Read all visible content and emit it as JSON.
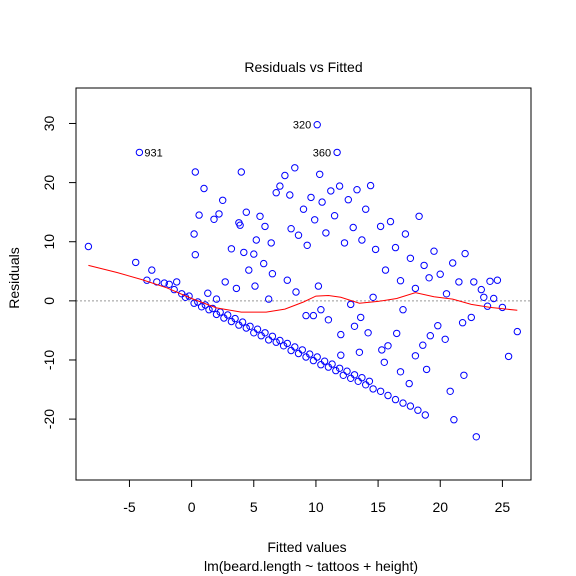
{
  "chart_data": {
    "type": "scatter",
    "title": "Residuals vs Fitted",
    "xlabel": "Fitted values",
    "subtitle": "lm(beard.length ~ tattoos + height)",
    "ylabel": "Residuals",
    "xlim": [
      -9.3,
      27.3
    ],
    "ylim": [
      -30.3,
      36.0
    ],
    "xticks": [
      -5,
      0,
      5,
      10,
      15,
      20,
      25
    ],
    "yticks": [
      -20,
      -10,
      0,
      10,
      20,
      30
    ],
    "grid": false,
    "reference_line_y": 0,
    "point_color": "#0000ff",
    "smooth_color": "#ff0000",
    "reference_color": "#999999",
    "labeled_points": [
      {
        "label": "320",
        "x": 10.1,
        "y": 29.8
      },
      {
        "label": "931",
        "x": -4.2,
        "y": 25.1
      },
      {
        "label": "360",
        "x": 11.7,
        "y": 25.1
      }
    ],
    "points": [
      [
        -8.3,
        9.2
      ],
      [
        -4.5,
        6.5
      ],
      [
        -3.2,
        5.2
      ],
      [
        -2.8,
        3.2
      ],
      [
        -3.6,
        3.5
      ],
      [
        -2.2,
        3.0
      ],
      [
        -1.8,
        2.8
      ],
      [
        -1.4,
        1.9
      ],
      [
        -1.2,
        3.2
      ],
      [
        -0.8,
        1.2
      ],
      [
        -0.5,
        0.6
      ],
      [
        0.3,
        21.8
      ],
      [
        1.0,
        19.0
      ],
      [
        1.8,
        13.8
      ],
      [
        0.6,
        14.5
      ],
      [
        0.2,
        11.3
      ],
      [
        0.3,
        7.8
      ],
      [
        -0.2,
        0.8
      ],
      [
        2.2,
        14.7
      ],
      [
        2.5,
        17.0
      ],
      [
        3.2,
        8.8
      ],
      [
        3.9,
        12.8
      ],
      [
        4.0,
        21.8
      ],
      [
        4.4,
        15.0
      ],
      [
        4.2,
        8.2
      ],
      [
        3.8,
        13.2
      ],
      [
        5.0,
        7.9
      ],
      [
        5.2,
        10.3
      ],
      [
        5.5,
        14.3
      ],
      [
        5.9,
        12.6
      ],
      [
        6.4,
        9.8
      ],
      [
        6.8,
        18.3
      ],
      [
        7.1,
        19.4
      ],
      [
        7.5,
        21.2
      ],
      [
        7.9,
        17.9
      ],
      [
        8.3,
        22.5
      ],
      [
        8.0,
        12.2
      ],
      [
        8.6,
        11.1
      ],
      [
        9.0,
        15.5
      ],
      [
        9.3,
        9.4
      ],
      [
        9.6,
        17.5
      ],
      [
        9.9,
        13.7
      ],
      [
        10.3,
        21.4
      ],
      [
        10.5,
        16.7
      ],
      [
        10.8,
        11.5
      ],
      [
        11.2,
        18.6
      ],
      [
        11.5,
        14.4
      ],
      [
        11.9,
        19.4
      ],
      [
        12.3,
        9.8
      ],
      [
        12.6,
        17.1
      ],
      [
        13.0,
        12.4
      ],
      [
        13.3,
        18.8
      ],
      [
        13.7,
        10.3
      ],
      [
        14.0,
        15.5
      ],
      [
        14.4,
        19.5
      ],
      [
        14.8,
        8.7
      ],
      [
        15.2,
        12.6
      ],
      [
        15.6,
        5.2
      ],
      [
        16.0,
        13.4
      ],
      [
        16.4,
        9.0
      ],
      [
        16.8,
        3.4
      ],
      [
        17.2,
        11.3
      ],
      [
        17.6,
        7.2
      ],
      [
        18.0,
        2.1
      ],
      [
        18.3,
        14.3
      ],
      [
        18.7,
        6.0
      ],
      [
        19.1,
        3.9
      ],
      [
        19.5,
        8.4
      ],
      [
        20.0,
        4.5
      ],
      [
        20.5,
        1.2
      ],
      [
        21.0,
        6.4
      ],
      [
        21.5,
        3.2
      ],
      [
        22.0,
        8.0
      ],
      [
        22.7,
        3.2
      ],
      [
        23.3,
        1.9
      ],
      [
        24.0,
        3.3
      ],
      [
        23.5,
        0.6
      ],
      [
        22.5,
        -2.8
      ],
      [
        21.8,
        -3.7
      ],
      [
        20.4,
        -6.5
      ],
      [
        19.2,
        -5.9
      ],
      [
        18.6,
        -7.5
      ],
      [
        18.0,
        -9.3
      ],
      [
        16.5,
        -5.5
      ],
      [
        15.3,
        -8.3
      ],
      [
        14.2,
        -5.4
      ],
      [
        13.1,
        -4.3
      ],
      [
        12.0,
        -5.7
      ],
      [
        11.0,
        -3.2
      ],
      [
        10.4,
        -1.5
      ],
      [
        9.2,
        -2.5
      ],
      [
        8.4,
        1.5
      ],
      [
        7.7,
        3.5
      ],
      [
        6.5,
        4.6
      ],
      [
        5.8,
        6.3
      ],
      [
        5.1,
        2.5
      ],
      [
        4.6,
        5.2
      ],
      [
        3.6,
        2.1
      ],
      [
        2.7,
        3.2
      ],
      [
        2.0,
        0.3
      ],
      [
        1.3,
        1.3
      ],
      [
        6.2,
        0.3
      ],
      [
        9.8,
        -2.5
      ],
      [
        10.2,
        2.5
      ],
      [
        12.8,
        -0.6
      ],
      [
        13.6,
        -2.8
      ],
      [
        14.6,
        0.6
      ],
      [
        17.0,
        -1.5
      ],
      [
        19.8,
        -4.2
      ],
      [
        20.8,
        -15.3
      ],
      [
        21.1,
        -20.1
      ],
      [
        22.9,
        -23.0
      ],
      [
        21.9,
        -12.6
      ],
      [
        25.5,
        -9.4
      ],
      [
        26.2,
        -5.2
      ],
      [
        25.0,
        -1.1
      ],
      [
        24.6,
        3.5
      ],
      [
        24.3,
        0.4
      ],
      [
        23.8,
        -0.9
      ],
      [
        17.5,
        -14.0
      ],
      [
        16.8,
        -12.0
      ],
      [
        15.5,
        -10.4
      ],
      [
        15.8,
        -7.6
      ],
      [
        18.9,
        -11.6
      ],
      [
        13.5,
        -8.7
      ],
      [
        12.0,
        -9.2
      ],
      [
        0.2,
        -0.4
      ],
      [
        0.8,
        -1.0
      ],
      [
        1.4,
        -1.5
      ],
      [
        2.0,
        -2.3
      ],
      [
        2.6,
        -2.9
      ],
      [
        3.2,
        -3.5
      ],
      [
        3.8,
        -4.1
      ],
      [
        4.4,
        -4.6
      ],
      [
        5.0,
        -5.4
      ],
      [
        5.6,
        -5.9
      ],
      [
        6.2,
        -6.6
      ],
      [
        6.8,
        -7.0
      ],
      [
        7.4,
        -7.6
      ],
      [
        8.0,
        -8.4
      ],
      [
        8.6,
        -8.9
      ],
      [
        9.2,
        -9.5
      ],
      [
        9.8,
        -10.1
      ],
      [
        10.4,
        -10.8
      ],
      [
        11.0,
        -11.2
      ],
      [
        11.6,
        -11.8
      ],
      [
        12.2,
        -12.6
      ],
      [
        12.8,
        -13.1
      ],
      [
        13.4,
        -13.6
      ],
      [
        14.0,
        -14.2
      ],
      [
        14.6,
        -14.9
      ],
      [
        15.2,
        -15.3
      ],
      [
        15.8,
        -16.0
      ],
      [
        16.4,
        -16.7
      ],
      [
        17.0,
        -17.3
      ],
      [
        17.6,
        -17.8
      ],
      [
        18.2,
        -18.5
      ],
      [
        18.8,
        -19.3
      ],
      [
        0.5,
        -0.2
      ],
      [
        1.1,
        -0.7
      ],
      [
        1.7,
        -1.3
      ],
      [
        2.3,
        -1.9
      ],
      [
        2.9,
        -2.4
      ],
      [
        3.5,
        -3.0
      ],
      [
        4.1,
        -3.6
      ],
      [
        4.7,
        -4.3
      ],
      [
        5.3,
        -4.8
      ],
      [
        5.9,
        -5.4
      ],
      [
        6.5,
        -6.0
      ],
      [
        7.1,
        -6.7
      ],
      [
        7.7,
        -7.2
      ],
      [
        8.3,
        -7.8
      ],
      [
        8.9,
        -8.3
      ],
      [
        9.5,
        -9.0
      ],
      [
        10.1,
        -9.5
      ],
      [
        10.7,
        -10.2
      ],
      [
        11.3,
        -10.7
      ],
      [
        11.9,
        -11.4
      ],
      [
        12.5,
        -11.9
      ],
      [
        13.1,
        -12.5
      ],
      [
        13.7,
        -13.0
      ],
      [
        14.3,
        -13.6
      ]
    ],
    "smooth_line": [
      [
        -8.3,
        6.0
      ],
      [
        -6.0,
        4.8
      ],
      [
        -4.0,
        3.6
      ],
      [
        -2.0,
        2.2
      ],
      [
        0.0,
        0.4
      ],
      [
        2.0,
        -1.2
      ],
      [
        4.0,
        -1.9
      ],
      [
        6.0,
        -1.9
      ],
      [
        7.5,
        -1.4
      ],
      [
        9.0,
        -0.2
      ],
      [
        10.0,
        0.8
      ],
      [
        11.0,
        0.9
      ],
      [
        12.0,
        0.6
      ],
      [
        13.5,
        -0.4
      ],
      [
        15.0,
        -0.1
      ],
      [
        16.5,
        0.4
      ],
      [
        18.0,
        1.4
      ],
      [
        19.5,
        0.7
      ],
      [
        21.0,
        0.3
      ],
      [
        22.5,
        -0.6
      ],
      [
        24.0,
        -1.1
      ],
      [
        26.2,
        -1.6
      ]
    ]
  }
}
